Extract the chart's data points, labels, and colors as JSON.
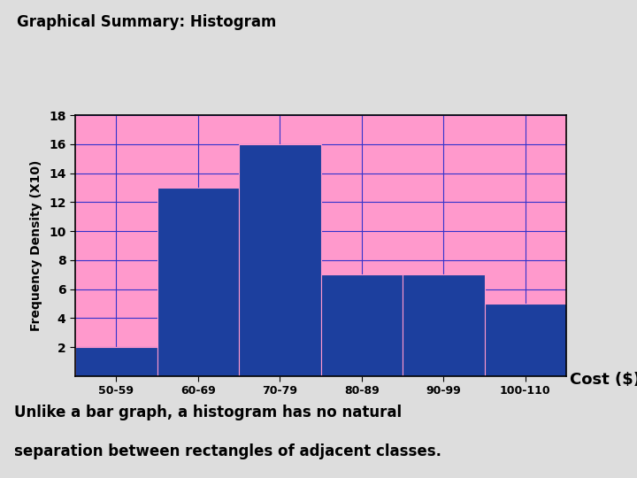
{
  "title": "Graphical Summary: Histogram",
  "categories": [
    "50-59",
    "60-69",
    "70-79",
    "80-89",
    "90-99",
    "100-110"
  ],
  "values": [
    2,
    13,
    16,
    7,
    7,
    5
  ],
  "bar_color": "#1C3F9E",
  "ylabel": "Frequency Density (X10)",
  "xlabel": "Cost ($)",
  "ylim": [
    0,
    18
  ],
  "yticks": [
    2,
    4,
    6,
    8,
    10,
    12,
    14,
    16,
    18
  ],
  "grid_color": "#3333CC",
  "plot_bg_color": "#FF99CC",
  "title_bg": "#FFFF00",
  "bottom_bg": "#FFFF00",
  "bottom_text_line1": "Unlike a bar graph, a histogram has no natural",
  "bottom_text_line2": "separation between rectangles of adjacent classes.",
  "fig_bg": "#DDDDDD"
}
